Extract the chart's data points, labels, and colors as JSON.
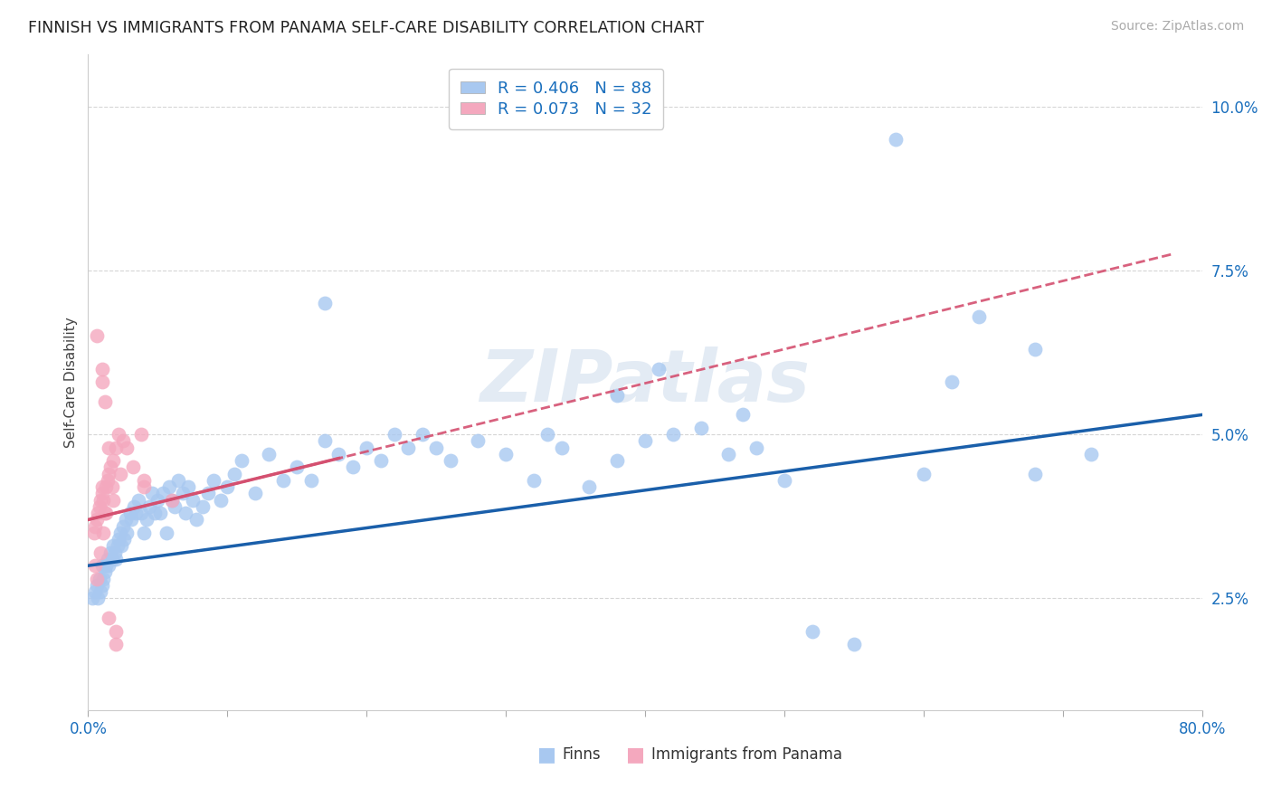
{
  "title": "FINNISH VS IMMIGRANTS FROM PANAMA SELF-CARE DISABILITY CORRELATION CHART",
  "source": "Source: ZipAtlas.com",
  "ylabel": "Self-Care Disability",
  "ytick_values": [
    0.025,
    0.05,
    0.075,
    0.1
  ],
  "xlim": [
    0.0,
    0.8
  ],
  "ylim": [
    0.008,
    0.108
  ],
  "legend_label1": "Finns",
  "legend_label2": "Immigrants from Panama",
  "R1": 0.406,
  "N1": 88,
  "R2": 0.073,
  "N2": 32,
  "color_blue": "#a8c8f0",
  "color_pink": "#f4a8be",
  "color_blue_line": "#1a5faa",
  "color_pink_line": "#d45070",
  "color_blue_dark": "#1a6fbd",
  "color_grid": "#cccccc",
  "color_watermark": "#c8d8ea",
  "watermark": "ZIPatlas",
  "blue_x": [
    0.003,
    0.005,
    0.006,
    0.007,
    0.008,
    0.009,
    0.01,
    0.01,
    0.011,
    0.012,
    0.013,
    0.014,
    0.015,
    0.016,
    0.017,
    0.018,
    0.019,
    0.02,
    0.021,
    0.022,
    0.023,
    0.024,
    0.025,
    0.026,
    0.027,
    0.028,
    0.03,
    0.031,
    0.033,
    0.034,
    0.036,
    0.038,
    0.04,
    0.042,
    0.044,
    0.046,
    0.048,
    0.05,
    0.052,
    0.054,
    0.056,
    0.058,
    0.06,
    0.062,
    0.065,
    0.068,
    0.07,
    0.072,
    0.075,
    0.078,
    0.082,
    0.086,
    0.09,
    0.095,
    0.1,
    0.105,
    0.11,
    0.12,
    0.13,
    0.14,
    0.15,
    0.16,
    0.17,
    0.18,
    0.19,
    0.2,
    0.21,
    0.22,
    0.23,
    0.24,
    0.25,
    0.26,
    0.28,
    0.3,
    0.32,
    0.34,
    0.36,
    0.38,
    0.4,
    0.42,
    0.44,
    0.46,
    0.48,
    0.5,
    0.52,
    0.55,
    0.6,
    0.68
  ],
  "blue_y": [
    0.025,
    0.026,
    0.027,
    0.025,
    0.028,
    0.026,
    0.027,
    0.03,
    0.028,
    0.029,
    0.03,
    0.031,
    0.03,
    0.032,
    0.031,
    0.033,
    0.032,
    0.031,
    0.033,
    0.034,
    0.035,
    0.033,
    0.036,
    0.034,
    0.037,
    0.035,
    0.038,
    0.037,
    0.039,
    0.038,
    0.04,
    0.038,
    0.035,
    0.037,
    0.039,
    0.041,
    0.038,
    0.04,
    0.038,
    0.041,
    0.035,
    0.042,
    0.04,
    0.039,
    0.043,
    0.041,
    0.038,
    0.042,
    0.04,
    0.037,
    0.039,
    0.041,
    0.043,
    0.04,
    0.042,
    0.044,
    0.046,
    0.041,
    0.047,
    0.043,
    0.045,
    0.043,
    0.049,
    0.047,
    0.045,
    0.048,
    0.046,
    0.05,
    0.048,
    0.05,
    0.048,
    0.046,
    0.049,
    0.047,
    0.043,
    0.048,
    0.042,
    0.046,
    0.049,
    0.05,
    0.051,
    0.047,
    0.048,
    0.043,
    0.02,
    0.018,
    0.044,
    0.044
  ],
  "blue_y_outliers": [
    0.095,
    0.07,
    0.068,
    0.063,
    0.06,
    0.058,
    0.056,
    0.053,
    0.05,
    0.047
  ],
  "blue_x_outliers": [
    0.58,
    0.17,
    0.64,
    0.68,
    0.41,
    0.62,
    0.38,
    0.47,
    0.33,
    0.72
  ],
  "pink_x": [
    0.004,
    0.005,
    0.006,
    0.007,
    0.008,
    0.009,
    0.01,
    0.01,
    0.011,
    0.012,
    0.013,
    0.014,
    0.015,
    0.016,
    0.017,
    0.018,
    0.02,
    0.022,
    0.025,
    0.028,
    0.032,
    0.038,
    0.005,
    0.006,
    0.009,
    0.011,
    0.013,
    0.018,
    0.023,
    0.04,
    0.06,
    0.04
  ],
  "pink_y": [
    0.035,
    0.036,
    0.037,
    0.038,
    0.039,
    0.04,
    0.041,
    0.042,
    0.04,
    0.038,
    0.042,
    0.043,
    0.044,
    0.045,
    0.042,
    0.046,
    0.048,
    0.05,
    0.049,
    0.048,
    0.045,
    0.05,
    0.03,
    0.028,
    0.032,
    0.035,
    0.038,
    0.04,
    0.044,
    0.042,
    0.04,
    0.043
  ],
  "pink_y_outliers": [
    0.065,
    0.06,
    0.058,
    0.055,
    0.048,
    0.022,
    0.02,
    0.018
  ],
  "pink_x_outliers": [
    0.006,
    0.01,
    0.01,
    0.012,
    0.015,
    0.015,
    0.02,
    0.02
  ]
}
